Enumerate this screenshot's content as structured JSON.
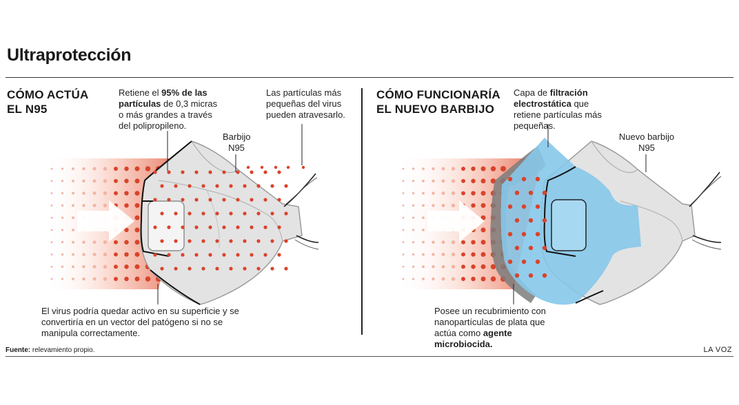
{
  "title": "Ultraprotección",
  "left": {
    "title_line1": "CÓMO ACTÚA",
    "title_line2": "EL N95",
    "retains": {
      "pre": "Retiene el ",
      "bold": "95% de las partículas",
      "post": " de 0,3 micras o más grandes a través del polipropileno."
    },
    "small_particles": "Las partículas más pequeñas del virus pueden atravesarlo.",
    "mask_label_line1": "Barbijo",
    "mask_label_line2": "N95",
    "virus_note": "El virus podría quedar activo en su superficie y se convertiría en un vector del patógeno si no se manipula correctamente."
  },
  "right": {
    "title_line1": "CÓMO FUNCIONARÍA",
    "title_line2": "EL NUEVO BARBIJO",
    "layer": {
      "pre": "Capa de ",
      "bold": "filtración electrostática",
      "post": " que retiene partículas más pequeñas."
    },
    "mask_label_line1": "Nuevo barbijo",
    "mask_label_line2": "N95",
    "coating": {
      "pre": "Posee un recubrimiento con nanopartículas de plata que actúa como ",
      "bold": "agente microbiocida."
    }
  },
  "footer": {
    "source_label": "Fuente:",
    "source_text": " relevamiento propio.",
    "brand": "LA VOZ"
  },
  "colors": {
    "particle_red": "#d9432a",
    "particle_pink": "#f2b4a3",
    "mask_gray": "#dedede",
    "mask_outline": "#9a9a9a",
    "filter_blue": "#7ec6ea",
    "strip_black": "#111111"
  }
}
